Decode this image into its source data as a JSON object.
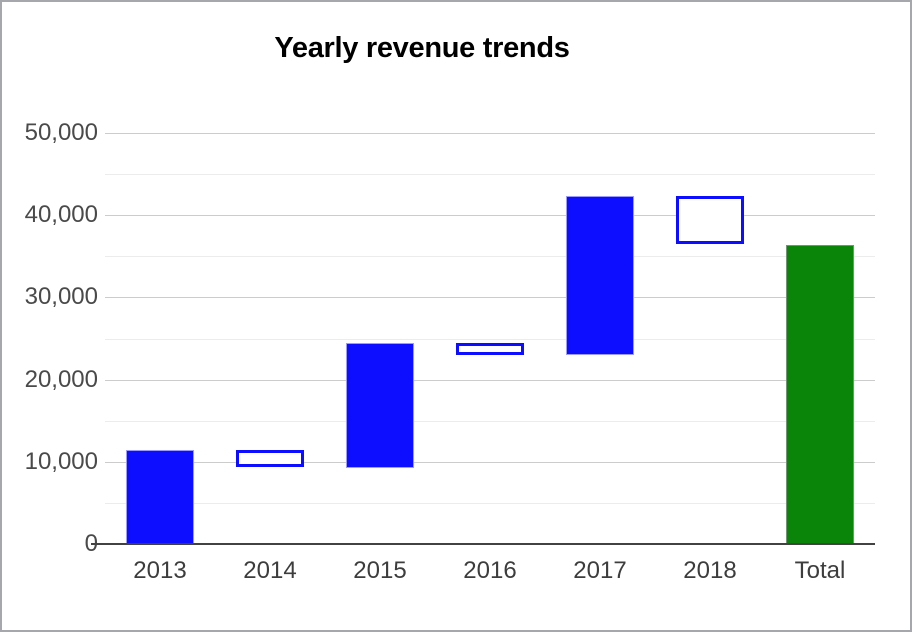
{
  "title": "Yearly revenue trends",
  "chart_data": {
    "type": "bar",
    "subtype": "waterfall",
    "title": "Yearly revenue trends",
    "xlabel": "",
    "ylabel": "",
    "legend": "none",
    "grid": true,
    "categories": [
      "2013",
      "2014",
      "2015",
      "2016",
      "2017",
      "2018",
      "Total"
    ],
    "segments": [
      {
        "label": "2013",
        "start": 0,
        "end": 11400,
        "kind": "rising"
      },
      {
        "label": "2014",
        "start": 11400,
        "end": 9300,
        "kind": "falling"
      },
      {
        "label": "2015",
        "start": 9300,
        "end": 24500,
        "kind": "rising"
      },
      {
        "label": "2016",
        "start": 24500,
        "end": 23000,
        "kind": "falling"
      },
      {
        "label": "2017",
        "start": 23000,
        "end": 42300,
        "kind": "rising"
      },
      {
        "label": "2018",
        "start": 42300,
        "end": 36400,
        "kind": "falling"
      },
      {
        "label": "Total",
        "start": 0,
        "end": 36400,
        "kind": "total"
      }
    ],
    "y_axis": {
      "min": 0,
      "max": 50000,
      "major_step": 10000,
      "minor_step": 5000,
      "tick_labels": [
        "0",
        "10,000",
        "20,000",
        "30,000",
        "40,000",
        "50,000"
      ]
    },
    "colors": {
      "rising_fill": "#0d0dff",
      "falling_stroke": "#0d0dff",
      "falling_fill": "#ffffff",
      "total_fill": "#0a850a",
      "major_grid": "#cccccc",
      "minor_grid": "#ececec",
      "baseline": "#424242",
      "title_text": "#000000",
      "y_label_text": "#4a4a4a",
      "x_label_text": "#3d3d3d",
      "frame_border": "#a6a6ad"
    }
  }
}
